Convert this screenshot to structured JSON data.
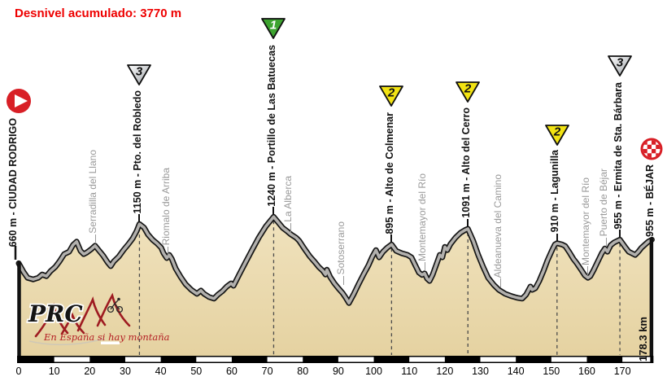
{
  "title": {
    "text": "Desnivel acumulado: 3770 m"
  },
  "colors": {
    "title_red": "#ee0000",
    "terrain_top": "#f0e2bd",
    "terrain_bottom": "#e5d2a1",
    "road_gray": "#b2b0ad",
    "outline_black": "#161616",
    "town_gray": "#9a9a9a",
    "cat_green": "#3da32f",
    "cat_yellow": "#f2e313",
    "cat_silver_light": "#ffffff",
    "cat_silver_dark": "#9ea3a8",
    "icon_red": "#d81f26",
    "logo_red": "#9e1b21",
    "slogan_red": "#b41e24"
  },
  "start": {
    "label": "660 m - CIUDAD RODRIGO",
    "km": 0,
    "elev_m": 660,
    "icon": "play-icon"
  },
  "finish": {
    "label": "955 m - BÉJAR",
    "km": 178.3,
    "elev_m": 955,
    "icon": "checkered-flag-icon"
  },
  "climbs": [
    {
      "label": "1150 m - Pto. del Robledo",
      "category": "3",
      "km": 34,
      "summit_elev_m": 1150,
      "marker": "silver"
    },
    {
      "label": "1240 m - Portillo de Las Batuecas",
      "category": "1",
      "km": 71.8,
      "summit_elev_m": 1240,
      "marker": "green"
    },
    {
      "label": "895 m - Alto de Colmenar",
      "category": "2",
      "km": 105,
      "summit_elev_m": 895,
      "marker": "yellow"
    },
    {
      "label": "1091 m - Alto del Cerro",
      "category": "2",
      "km": 126.5,
      "summit_elev_m": 1091,
      "marker": "yellow"
    },
    {
      "label": "910 m - Lagunilla",
      "category": "2",
      "km": 151.6,
      "summit_elev_m": 910,
      "marker": "yellow"
    },
    {
      "label": "955 m - Ermita de Sta. Bárbara",
      "category": "3",
      "km": 169.3,
      "summit_elev_m": 955,
      "marker": "silver"
    }
  ],
  "towns": [
    {
      "label": "Serradilla del Llano",
      "km": 21.5,
      "elev_m": 880
    },
    {
      "label": "Riomalo de Arriba",
      "km": 42.0,
      "elev_m": 730
    },
    {
      "label": "La Alberca",
      "km": 76.5,
      "elev_m": 1020
    },
    {
      "label": "Sotoserrano",
      "km": 91.3,
      "elev_m": 365
    },
    {
      "label": "Montemayor del Río",
      "km": 114.2,
      "elev_m": 530
    },
    {
      "label": "Aldeanueva del Camino",
      "km": 135.5,
      "elev_m": 325
    },
    {
      "label": "Montemayor del Río",
      "km": 160.2,
      "elev_m": 480
    },
    {
      "label": "Puerto de Béjar",
      "km": 165.3,
      "elev_m": 840
    }
  ],
  "axis": {
    "ticks": [
      "0",
      "10",
      "20",
      "30",
      "40",
      "50",
      "60",
      "70",
      "80",
      "90",
      "100",
      "110",
      "120",
      "130",
      "140",
      "150",
      "160",
      "170"
    ],
    "tick_step_km": 10,
    "end_label": "178.3 km"
  },
  "logo": {
    "brand": "PRC",
    "slogan": "En España si hay montaña"
  },
  "chart_data": {
    "type": "area",
    "title": "Desnivel acumulado: 3770 m",
    "x_unit": "km",
    "y_unit": "m",
    "x_range": [
      0,
      178.3
    ],
    "total_ascent_m": 3770,
    "start_point": {
      "name": "CIUDAD RODRIGO",
      "km": 0,
      "elev_m": 660
    },
    "finish_point": {
      "name": "BÉJAR",
      "km": 178.3,
      "elev_m": 955
    },
    "profile": [
      [
        0,
        660
      ],
      [
        1.4,
        550
      ],
      [
        2.5,
        480
      ],
      [
        4.1,
        460
      ],
      [
        5.5,
        480
      ],
      [
        6.6,
        520
      ],
      [
        7.8,
        500
      ],
      [
        8.9,
        560
      ],
      [
        10.3,
        615
      ],
      [
        11.5,
        685
      ],
      [
        12.8,
        775
      ],
      [
        14.2,
        805
      ],
      [
        15.3,
        890
      ],
      [
        16.3,
        930
      ],
      [
        17.4,
        815
      ],
      [
        18.3,
        775
      ],
      [
        19.2,
        795
      ],
      [
        20.4,
        835
      ],
      [
        21.5,
        880
      ],
      [
        22.7,
        815
      ],
      [
        23.8,
        755
      ],
      [
        25,
        675
      ],
      [
        25.9,
        625
      ],
      [
        26.8,
        685
      ],
      [
        28.2,
        745
      ],
      [
        29.5,
        825
      ],
      [
        30.9,
        900
      ],
      [
        32.1,
        970
      ],
      [
        33.2,
        1060
      ],
      [
        34,
        1150
      ],
      [
        35.3,
        1105
      ],
      [
        36.4,
        1020
      ],
      [
        37.8,
        950
      ],
      [
        38.9,
        910
      ],
      [
        40.1,
        855
      ],
      [
        40.8,
        785
      ],
      [
        41.7,
        725
      ],
      [
        42.4,
        765
      ],
      [
        43.1,
        715
      ],
      [
        44.2,
        595
      ],
      [
        45.6,
        490
      ],
      [
        47,
        400
      ],
      [
        48.6,
        330
      ],
      [
        50.2,
        280
      ],
      [
        51.3,
        320
      ],
      [
        52.2,
        280
      ],
      [
        53.6,
        240
      ],
      [
        55,
        220
      ],
      [
        56.1,
        270
      ],
      [
        57.3,
        310
      ],
      [
        58.6,
        370
      ],
      [
        59.8,
        410
      ],
      [
        60.5,
        380
      ],
      [
        62.1,
        520
      ],
      [
        63.9,
        675
      ],
      [
        65.7,
        825
      ],
      [
        67.6,
        980
      ],
      [
        69.6,
        1120
      ],
      [
        71.8,
        1240
      ],
      [
        73.1,
        1170
      ],
      [
        74.4,
        1100
      ],
      [
        75.6,
        1060
      ],
      [
        76.7,
        1020
      ],
      [
        78.1,
        980
      ],
      [
        79,
        940
      ],
      [
        80.4,
        845
      ],
      [
        82,
        745
      ],
      [
        83.4,
        675
      ],
      [
        84.5,
        615
      ],
      [
        85.7,
        565
      ],
      [
        86.4,
        520
      ],
      [
        86.8,
        580
      ],
      [
        87.7,
        490
      ],
      [
        88.9,
        410
      ],
      [
        90,
        350
      ],
      [
        91.2,
        290
      ],
      [
        92.1,
        230
      ],
      [
        93,
        165
      ],
      [
        94.4,
        280
      ],
      [
        95.7,
        400
      ],
      [
        97.1,
        520
      ],
      [
        98.5,
        635
      ],
      [
        99.6,
        745
      ],
      [
        100.6,
        825
      ],
      [
        101.5,
        735
      ],
      [
        102.6,
        805
      ],
      [
        103.8,
        855
      ],
      [
        105,
        895
      ],
      [
        106.3,
        815
      ],
      [
        107.9,
        785
      ],
      [
        109.5,
        765
      ],
      [
        110.6,
        735
      ],
      [
        111.8,
        625
      ],
      [
        112.7,
        545
      ],
      [
        113.6,
        515
      ],
      [
        114.3,
        535
      ],
      [
        115,
        470
      ],
      [
        115.7,
        440
      ],
      [
        116.6,
        520
      ],
      [
        117.7,
        655
      ],
      [
        118.6,
        765
      ],
      [
        119.3,
        735
      ],
      [
        120,
        865
      ],
      [
        120.7,
        825
      ],
      [
        121.6,
        900
      ],
      [
        123,
        980
      ],
      [
        124.4,
        1040
      ],
      [
        125.7,
        1075
      ],
      [
        126.5,
        1091
      ],
      [
        128,
        940
      ],
      [
        129.4,
        765
      ],
      [
        130.8,
        615
      ],
      [
        132.2,
        480
      ],
      [
        133.8,
        390
      ],
      [
        135.2,
        330
      ],
      [
        137,
        280
      ],
      [
        138.8,
        250
      ],
      [
        140.4,
        230
      ],
      [
        141.8,
        220
      ],
      [
        142.9,
        270
      ],
      [
        144.1,
        370
      ],
      [
        144.6,
        330
      ],
      [
        145.5,
        350
      ],
      [
        146.6,
        440
      ],
      [
        147.8,
        565
      ],
      [
        148.9,
        695
      ],
      [
        150.1,
        815
      ],
      [
        151,
        895
      ],
      [
        151.6,
        910
      ],
      [
        153,
        895
      ],
      [
        153.9,
        875
      ],
      [
        155.1,
        795
      ],
      [
        156.2,
        715
      ],
      [
        157.1,
        665
      ],
      [
        158.3,
        585
      ],
      [
        159.4,
        510
      ],
      [
        160.3,
        480
      ],
      [
        161,
        500
      ],
      [
        161.9,
        575
      ],
      [
        163.1,
        685
      ],
      [
        164.2,
        785
      ],
      [
        165.1,
        845
      ],
      [
        165.8,
        805
      ],
      [
        166.7,
        885
      ],
      [
        167.7,
        920
      ],
      [
        168.6,
        940
      ],
      [
        169.3,
        955
      ],
      [
        169.7,
        930
      ],
      [
        170.9,
        855
      ],
      [
        171.8,
        805
      ],
      [
        172.7,
        785
      ],
      [
        173.6,
        765
      ],
      [
        174.5,
        805
      ],
      [
        175.4,
        855
      ],
      [
        176.4,
        895
      ],
      [
        177.3,
        930
      ],
      [
        178.3,
        955
      ]
    ],
    "summits": [
      {
        "name": "Pto. del Robledo",
        "km": 34,
        "elev_m": 1150,
        "category": "3"
      },
      {
        "name": "Portillo de Las Batuecas",
        "km": 71.8,
        "elev_m": 1240,
        "category": "1"
      },
      {
        "name": "Alto de Colmenar",
        "km": 105,
        "elev_m": 895,
        "category": "2"
      },
      {
        "name": "Alto del Cerro",
        "km": 126.5,
        "elev_m": 1091,
        "category": "2"
      },
      {
        "name": "Lagunilla",
        "km": 151.6,
        "elev_m": 910,
        "category": "2"
      },
      {
        "name": "Ermita de Sta. Bárbara",
        "km": 169.3,
        "elev_m": 955,
        "category": "3"
      }
    ]
  }
}
